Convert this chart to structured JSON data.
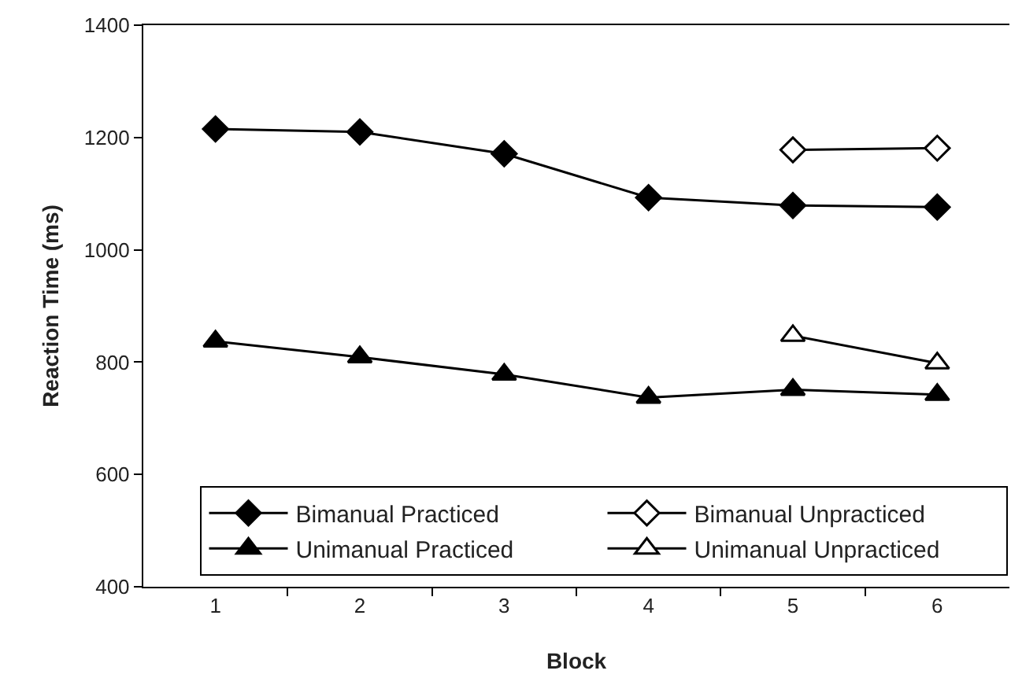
{
  "chart_data": {
    "type": "line",
    "xlabel": "Block",
    "ylabel": "Reaction Time (ms)",
    "categories": [
      "1",
      "2",
      "3",
      "4",
      "5",
      "6"
    ],
    "ylim": [
      400,
      1400
    ],
    "yticks": [
      400,
      600,
      800,
      1000,
      1200,
      1400
    ],
    "grid": false,
    "legend": "bottom",
    "line_style": "solid",
    "series": [
      {
        "name": "Bimanual Practiced",
        "color": "#000000",
        "marker": "diamond",
        "values": [
          1215,
          1210,
          1171,
          1093,
          1079,
          1076
        ]
      },
      {
        "name": "Bimanual Unpracticed",
        "color": "#ffffff",
        "marker": "diamond",
        "values": [
          null,
          null,
          null,
          null,
          1178,
          1181
        ]
      },
      {
        "name": "Unimanual Practiced",
        "color": "#000000",
        "marker": "triangle",
        "values": [
          837,
          809,
          778,
          737,
          751,
          742
        ]
      },
      {
        "name": "Unimanual Unpracticed",
        "color": "#ffffff",
        "marker": "triangle",
        "values": [
          null,
          null,
          null,
          null,
          847,
          798
        ]
      }
    ]
  }
}
